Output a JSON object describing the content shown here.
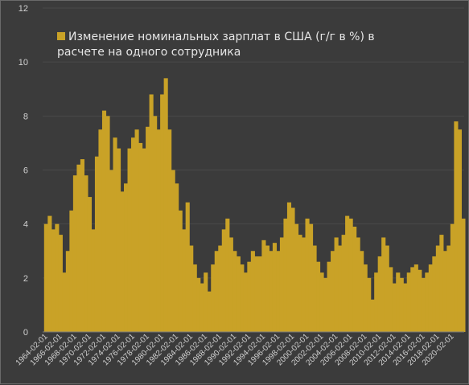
{
  "chart_data": {
    "type": "bar",
    "title": "",
    "xlabel": "",
    "ylabel": "",
    "ylim": [
      0,
      12
    ],
    "yticks": [
      0,
      2,
      4,
      6,
      8,
      10,
      12
    ],
    "x_tick_labels": [
      "1964-02-01",
      "1966-02-01",
      "1968-02-01",
      "1970-02-01",
      "1972-02-01",
      "1974-02-01",
      "1976-02-01",
      "1978-02-01",
      "1980-02-01",
      "1982-02-01",
      "1984-02-01",
      "1986-02-01",
      "1988-02-01",
      "1990-02-01",
      "1992-02-01",
      "1994-02-01",
      "1996-02-01",
      "1998-02-01",
      "2000-02-01",
      "2002-02-01",
      "2004-02-01",
      "2006-02-01",
      "2008-02-01",
      "2010-02-01",
      "2012-02-01",
      "2014-02-01",
      "2016-02-01",
      "2018-02-01",
      "2020-02-01"
    ],
    "grid": true,
    "legend_position": "top-left",
    "series": [
      {
        "name": "Изменение номинальных зарплат в США (г/г в %) в расчете на одного сотрудника",
        "color": "#c9a227",
        "x": [
          "1964",
          "1964.5",
          "1965",
          "1965.5",
          "1966",
          "1966.5",
          "1967",
          "1967.5",
          "1968",
          "1968.5",
          "1969",
          "1969.5",
          "1970",
          "1970.5",
          "1971",
          "1971.5",
          "1972",
          "1972.5",
          "1973",
          "1973.5",
          "1974",
          "1974.5",
          "1975",
          "1975.5",
          "1976",
          "1976.5",
          "1977",
          "1977.5",
          "1978",
          "1978.5",
          "1979",
          "1979.5",
          "1980",
          "1980.5",
          "1981",
          "1981.5",
          "1982",
          "1982.5",
          "1983",
          "1983.5",
          "1984",
          "1984.5",
          "1985",
          "1985.5",
          "1986",
          "1986.5",
          "1987",
          "1987.5",
          "1988",
          "1988.5",
          "1989",
          "1989.5",
          "1990",
          "1990.5",
          "1991",
          "1991.5",
          "1992",
          "1992.5",
          "1993",
          "1993.5",
          "1994",
          "1994.5",
          "1995",
          "1995.5",
          "1996",
          "1996.5",
          "1997",
          "1997.5",
          "1998",
          "1998.5",
          "1999",
          "1999.5",
          "2000",
          "2000.5",
          "2001",
          "2001.5",
          "2002",
          "2002.5",
          "2003",
          "2003.5",
          "2004",
          "2004.5",
          "2005",
          "2005.5",
          "2006",
          "2006.5",
          "2007",
          "2007.5",
          "2008",
          "2008.5",
          "2009",
          "2009.5",
          "2010",
          "2010.5",
          "2011",
          "2011.5",
          "2012",
          "2012.5",
          "2013",
          "2013.5",
          "2014",
          "2014.5",
          "2015",
          "2015.5",
          "2016",
          "2016.5",
          "2017",
          "2017.5",
          "2018",
          "2018.5",
          "2019",
          "2019.5",
          "2020",
          "2020.5",
          "2021",
          "2021.5"
        ],
        "values": [
          4.0,
          4.3,
          3.8,
          4.0,
          3.6,
          2.2,
          3.0,
          4.5,
          5.8,
          6.2,
          6.4,
          5.8,
          5.0,
          3.8,
          6.5,
          7.5,
          8.2,
          8.0,
          6.0,
          7.2,
          6.8,
          5.2,
          5.5,
          6.8,
          7.2,
          7.5,
          7.0,
          6.8,
          7.6,
          8.8,
          8.0,
          7.5,
          8.8,
          9.4,
          7.5,
          6.0,
          5.5,
          4.5,
          3.8,
          4.8,
          3.2,
          2.5,
          2.0,
          1.8,
          2.2,
          1.5,
          2.5,
          3.0,
          3.2,
          3.8,
          4.2,
          3.5,
          3.0,
          2.8,
          2.5,
          2.2,
          2.6,
          3.0,
          2.8,
          2.8,
          3.4,
          3.2,
          3.0,
          3.3,
          3.0,
          3.5,
          4.2,
          4.8,
          4.6,
          4.0,
          3.6,
          3.5,
          4.2,
          4.0,
          3.2,
          2.6,
          2.2,
          2.0,
          2.6,
          3.0,
          3.5,
          3.2,
          3.6,
          4.3,
          4.2,
          3.9,
          3.5,
          3.0,
          2.5,
          2.0,
          1.2,
          2.2,
          2.8,
          3.5,
          3.2,
          2.4,
          1.8,
          2.2,
          2.0,
          1.8,
          2.2,
          2.4,
          2.5,
          2.3,
          2.0,
          2.2,
          2.5,
          2.8,
          3.2,
          3.6,
          3.0,
          3.2,
          4.0,
          7.8,
          7.5,
          4.2
        ]
      }
    ]
  }
}
